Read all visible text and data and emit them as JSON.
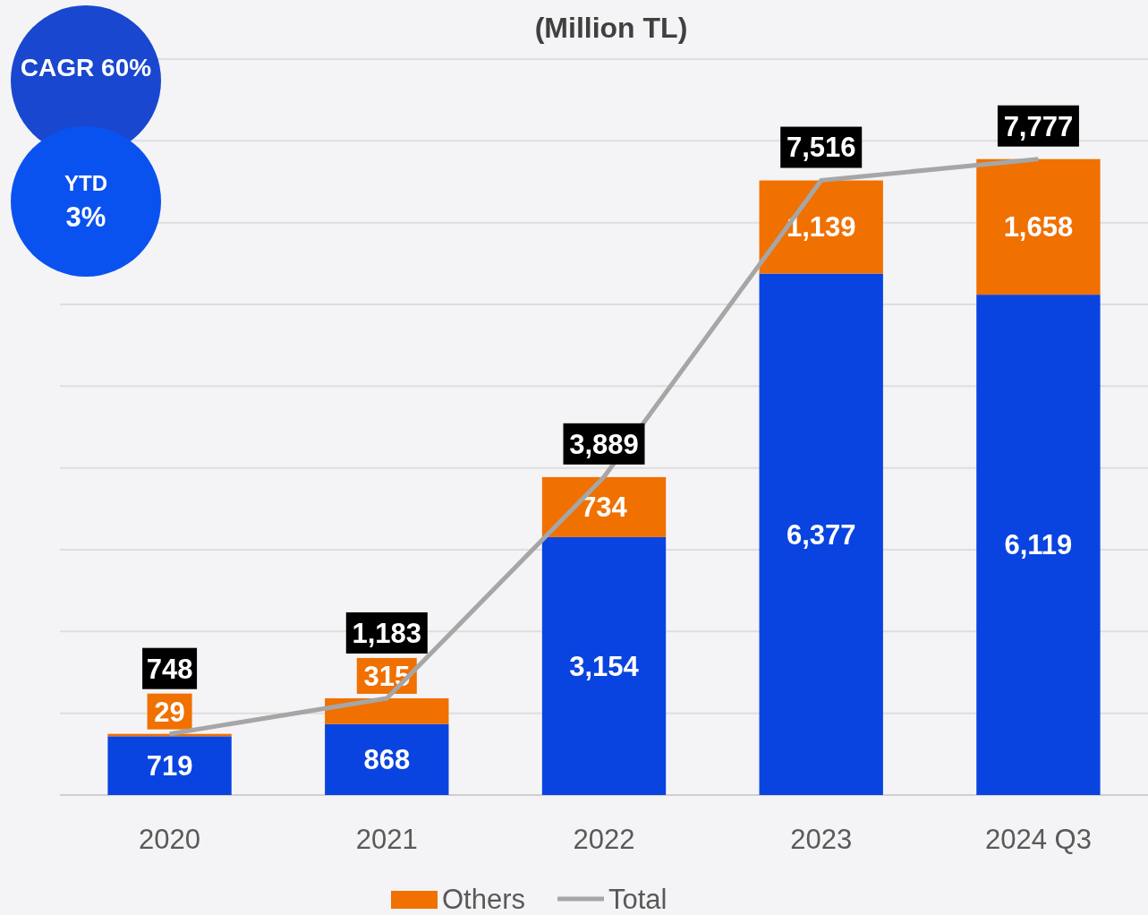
{
  "chart_data": {
    "type": "bar",
    "title": "(Million TL)",
    "categories": [
      "2020",
      "2021",
      "2022",
      "2023",
      "2024 Q3"
    ],
    "stacked": true,
    "series": [
      {
        "color": "#0a44e0",
        "values": [
          719,
          868,
          3154,
          6377,
          6119
        ],
        "value_labels": [
          "719",
          "868",
          "3,154",
          "6,377",
          "6,119"
        ]
      },
      {
        "name": "Others",
        "color": "#f07000",
        "values": [
          29,
          315,
          734,
          1139,
          1658
        ],
        "value_labels": [
          "29",
          "315",
          "734",
          "1,139",
          "1,658"
        ]
      },
      {
        "name": "Total",
        "type": "line",
        "color": "#a6a6a6",
        "values": [
          748,
          1183,
          3889,
          7516,
          7777
        ],
        "value_labels": [
          "748",
          "1,183",
          "3,889",
          "7,516",
          "7,777"
        ]
      }
    ],
    "ylim": [
      0,
      9000
    ],
    "yticks": [
      {
        "value": 0,
        "label": null
      },
      {
        "value": 1000,
        "label": null
      },
      {
        "value": 2000,
        "label": null
      },
      {
        "value": 3000,
        "label": null
      },
      {
        "value": 4000,
        "label": null
      },
      {
        "value": 5000,
        "label": null
      },
      {
        "value": 6000,
        "label": null
      },
      {
        "value": 7000,
        "label": null
      },
      {
        "value": 8000,
        "label": null
      },
      {
        "value": 9000,
        "label": null
      }
    ],
    "tick_labels": "x",
    "grid": "y",
    "legend": "bottom",
    "annotations": [
      "CAGR 60%",
      "YTD 3%"
    ]
  }
}
